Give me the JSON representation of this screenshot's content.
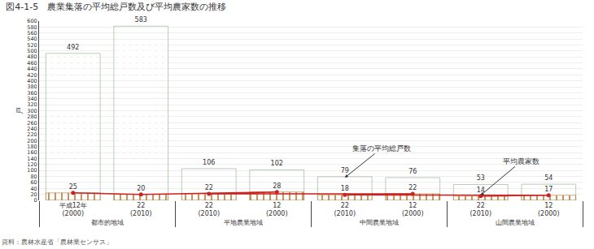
{
  "chart_data": {
    "type": "bar",
    "title": "図4-1-5　農業集落の平均総戸数及び平均農家数の推移",
    "ylabel": "戸",
    "source": "資料：農林水産省「農林業センサス」",
    "categories": [
      {
        "group": "都市的地域",
        "label": [
          "平成12年",
          "(2000)"
        ]
      },
      {
        "group": "都市的地域",
        "label": [
          "22",
          "(2010)"
        ]
      },
      {
        "group": "平地農業地域",
        "label": [
          "12",
          "(2000)"
        ]
      },
      {
        "group": "平地農業地域",
        "label": [
          "22",
          "(2010)"
        ]
      },
      {
        "group": "中間農業地域",
        "label": [
          "12",
          "(2000)"
        ]
      },
      {
        "group": "中間農業地域",
        "label": [
          "22",
          "(2010)"
        ]
      },
      {
        "group": "山間農業地域",
        "label": [
          "12",
          "(2000)"
        ]
      },
      {
        "group": "山間農業地域",
        "label": [
          "22",
          "(2010)"
        ]
      }
    ],
    "series": [
      {
        "type": "bar",
        "color": "#b8d4a8",
        "values": [
          492,
          583,
          102,
          106,
          76,
          79,
          54,
          53
        ]
      },
      {
        "type": "bar",
        "color": "#e8a96a",
        "values": [
          25,
          20,
          28,
          22,
          22,
          18,
          17,
          14
        ]
      },
      {
        "type": "line",
        "color": "#cc2222",
        "values": [
          25,
          20,
          28,
          22,
          22,
          18,
          17,
          14
        ]
      }
    ],
    "annotations": [
      {
        "text": "集落の平均総戸数",
        "series": 0,
        "category": 4
      },
      {
        "text": "平均農家数",
        "series": 1,
        "category": 6
      }
    ],
    "ylim": [
      0,
      600
    ],
    "yticks": [
      0,
      20,
      40,
      60,
      80,
      100,
      120,
      140,
      160,
      180,
      200,
      220,
      240,
      260,
      280,
      300,
      320,
      340,
      360,
      380,
      400,
      420,
      440,
      460,
      480,
      500,
      520,
      540,
      560,
      580,
      600
    ],
    "grid": true,
    "data_labels": true,
    "stacked": false
  }
}
